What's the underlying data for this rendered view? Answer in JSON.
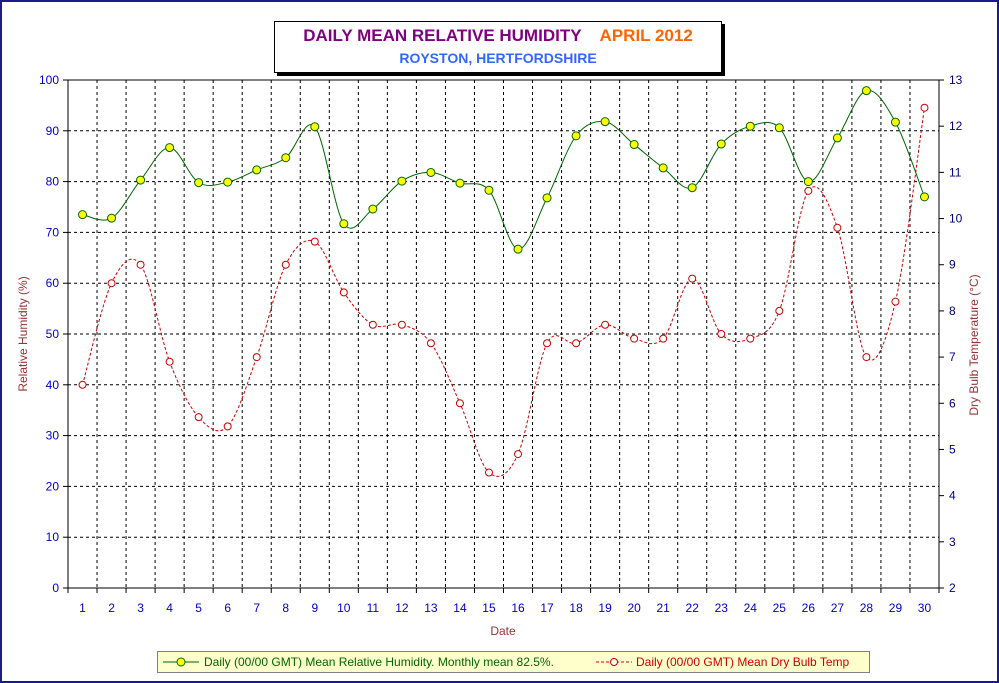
{
  "title": {
    "main": "DAILY MEAN RELATIVE HUMIDITY",
    "month": "APRIL 2012",
    "subtitle": "ROYSTON, HERTFORDSHIRE"
  },
  "colors": {
    "background": "#ffffff",
    "frame_border": "#1a1a8c",
    "humidity_line": "#006600",
    "humidity_marker": "#ffff00",
    "temp_line": "#cc0000",
    "left_axis_text": "#0000cc",
    "right_axis_text": "#000080",
    "axis_title": "#993333",
    "legend_bg": "#ffffcc"
  },
  "legend": {
    "humidity_label": "Daily (00/00 GMT) Mean Relative Humidity. Monthly mean 82.5%.",
    "temp_label": "Daily (00/00 GMT) Mean Dry Bulb Temp"
  },
  "chart_data": {
    "type": "line",
    "xlabel": "Date",
    "ylabel_left": "Relative Humidity (%)",
    "ylabel_right": "Dry Bulb Temperature (°C)",
    "x": [
      1,
      2,
      3,
      4,
      5,
      6,
      7,
      8,
      9,
      10,
      11,
      12,
      13,
      14,
      15,
      16,
      17,
      18,
      19,
      20,
      21,
      22,
      23,
      24,
      25,
      26,
      27,
      28,
      29,
      30
    ],
    "ylim_left": [
      0,
      100
    ],
    "yticks_left": [
      0,
      10,
      20,
      30,
      40,
      50,
      60,
      70,
      80,
      90,
      100
    ],
    "ylim_right": [
      2,
      13
    ],
    "yticks_right": [
      2,
      3,
      4,
      5,
      6,
      7,
      8,
      9,
      10,
      11,
      12,
      13
    ],
    "grid": true,
    "legend_position": "bottom",
    "series": [
      {
        "name": "Daily (00/00 GMT) Mean Relative Humidity. Monthly mean 82.5%.",
        "axis": "left",
        "style": "smooth solid line with yellow circle markers",
        "values": [
          73.5,
          72.8,
          80.3,
          86.7,
          79.8,
          79.9,
          82.3,
          84.7,
          90.8,
          71.7,
          74.6,
          80.1,
          81.8,
          79.7,
          78.3,
          66.7,
          76.8,
          89.0,
          91.8,
          87.3,
          82.7,
          78.8,
          87.4,
          90.9,
          90.6,
          80.0,
          88.6,
          97.9,
          91.7,
          77.0
        ]
      },
      {
        "name": "Daily (00/00 GMT) Mean Dry Bulb Temp",
        "axis": "right",
        "style": "smooth dashed line with open circle markers",
        "values": [
          6.4,
          8.6,
          9.0,
          6.9,
          5.7,
          5.5,
          7.0,
          9.0,
          9.5,
          8.4,
          7.7,
          7.7,
          7.3,
          6.0,
          4.5,
          4.9,
          7.3,
          7.3,
          7.7,
          7.4,
          7.4,
          8.7,
          7.5,
          7.4,
          8.0,
          10.6,
          9.8,
          7.0,
          8.2,
          12.4
        ]
      }
    ]
  }
}
